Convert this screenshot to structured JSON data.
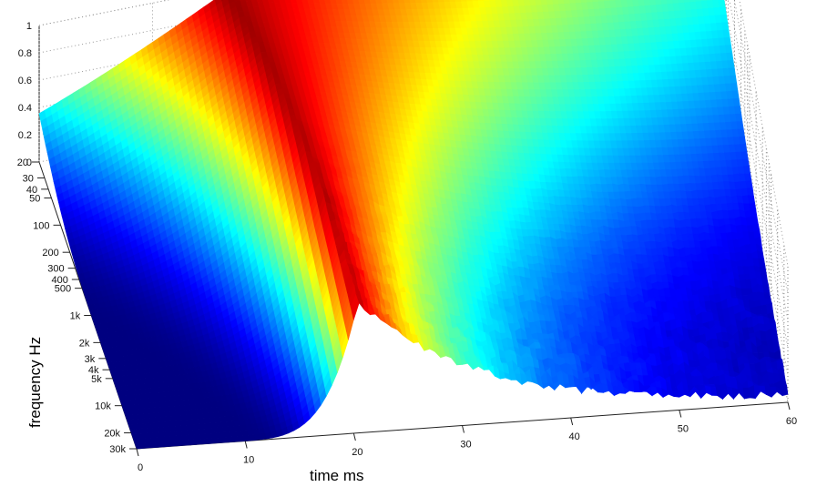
{
  "chart_data": {
    "type": "surface",
    "title": "",
    "colormap": "jet",
    "grid": true,
    "z_axis": {
      "label": "",
      "range": [
        0,
        1
      ],
      "ticks": [
        {
          "v": 0,
          "label": "0"
        },
        {
          "v": 0.2,
          "label": "0.2"
        },
        {
          "v": 0.4,
          "label": "0.4"
        },
        {
          "v": 0.6,
          "label": "0.6"
        },
        {
          "v": 0.8,
          "label": "0.8"
        },
        {
          "v": 1,
          "label": "1"
        }
      ]
    },
    "x_axis": {
      "label": "time   ms",
      "range": [
        0,
        60
      ],
      "ticks": [
        {
          "v": 0,
          "label": "0"
        },
        {
          "v": 10,
          "label": "10"
        },
        {
          "v": 20,
          "label": "20"
        },
        {
          "v": 30,
          "label": "30"
        },
        {
          "v": 40,
          "label": "40"
        },
        {
          "v": 50,
          "label": "50"
        },
        {
          "v": 60,
          "label": "60"
        }
      ]
    },
    "y_axis": {
      "label": "frequency   Hz",
      "scale": "log",
      "range": [
        20,
        30000
      ],
      "ticks": [
        {
          "v": 20,
          "label": "20"
        },
        {
          "v": 30,
          "label": "30"
        },
        {
          "v": 40,
          "label": "40"
        },
        {
          "v": 50,
          "label": "50"
        },
        {
          "v": 100,
          "label": "100"
        },
        {
          "v": 200,
          "label": "200"
        },
        {
          "v": 300,
          "label": "300"
        },
        {
          "v": 400,
          "label": "400"
        },
        {
          "v": 500,
          "label": "500"
        },
        {
          "v": 1000,
          "label": "1k"
        },
        {
          "v": 2000,
          "label": "2k"
        },
        {
          "v": 3000,
          "label": "3k"
        },
        {
          "v": 4000,
          "label": "4k"
        },
        {
          "v": 5000,
          "label": "5k"
        },
        {
          "v": 10000,
          "label": "10k"
        },
        {
          "v": 20000,
          "label": "20k"
        },
        {
          "v": 30000,
          "label": "30k"
        }
      ]
    },
    "onset_ridge": [
      {
        "f": 20,
        "t": 16.5
      },
      {
        "f": 50,
        "t": 17.5
      },
      {
        "f": 100,
        "t": 18.2
      },
      {
        "f": 300,
        "t": 19.0
      },
      {
        "f": 1000,
        "t": 19.6
      },
      {
        "f": 3000,
        "t": 20.0
      },
      {
        "f": 10000,
        "t": 20.2
      },
      {
        "f": 30000,
        "t": 20.3
      }
    ]
  }
}
